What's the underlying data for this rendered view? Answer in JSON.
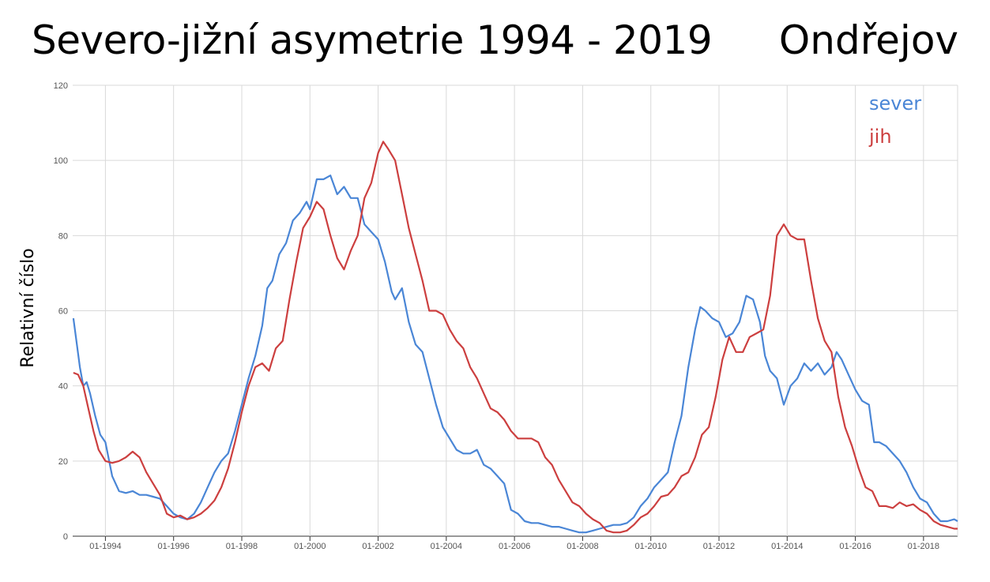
{
  "title": "Severo-jižní asymetrie 1994 - 2019",
  "station": "Ondřejov",
  "chart_data": {
    "type": "line",
    "title": "Severo-jižní asymetrie 1994 - 2019",
    "xlabel": "",
    "ylabel": "Relativní číslo",
    "ylim": [
      0,
      120
    ],
    "yticks": [
      0,
      20,
      40,
      60,
      80,
      100,
      120
    ],
    "xlim": [
      1993.04,
      2019.0
    ],
    "xticks": [
      {
        "value": 1994.0,
        "label": "01-1994"
      },
      {
        "value": 1996.0,
        "label": "01-1996"
      },
      {
        "value": 1998.0,
        "label": "01-1998"
      },
      {
        "value": 2000.0,
        "label": "01-2000"
      },
      {
        "value": 2002.0,
        "label": "01-2002"
      },
      {
        "value": 2004.0,
        "label": "01-2004"
      },
      {
        "value": 2006.0,
        "label": "01-2006"
      },
      {
        "value": 2008.0,
        "label": "01-2008"
      },
      {
        "value": 2010.0,
        "label": "01-2010"
      },
      {
        "value": 2012.0,
        "label": "01-2012"
      },
      {
        "value": 2014.0,
        "label": "01-2014"
      },
      {
        "value": 2016.0,
        "label": "01-2016"
      },
      {
        "value": 2018.0,
        "label": "01-2018"
      }
    ],
    "grid": true,
    "legend_position": "top-right",
    "series": [
      {
        "name": "sever",
        "color": "#4a86d6",
        "points": [
          [
            1993.06,
            58
          ],
          [
            1993.15,
            52
          ],
          [
            1993.25,
            45
          ],
          [
            1993.35,
            40
          ],
          [
            1993.45,
            41
          ],
          [
            1993.55,
            38
          ],
          [
            1993.7,
            32
          ],
          [
            1993.85,
            27
          ],
          [
            1994.0,
            25
          ],
          [
            1994.2,
            16
          ],
          [
            1994.4,
            12
          ],
          [
            1994.6,
            11.5
          ],
          [
            1994.8,
            12
          ],
          [
            1995.0,
            11
          ],
          [
            1995.2,
            11
          ],
          [
            1995.4,
            10.5
          ],
          [
            1995.6,
            10
          ],
          [
            1995.8,
            8
          ],
          [
            1996.0,
            6
          ],
          [
            1996.2,
            5
          ],
          [
            1996.4,
            4.5
          ],
          [
            1996.6,
            6
          ],
          [
            1996.8,
            9
          ],
          [
            1997.0,
            13
          ],
          [
            1997.2,
            17
          ],
          [
            1997.4,
            20
          ],
          [
            1997.6,
            22
          ],
          [
            1997.8,
            28
          ],
          [
            1998.0,
            35
          ],
          [
            1998.2,
            42
          ],
          [
            1998.4,
            48
          ],
          [
            1998.6,
            56
          ],
          [
            1998.75,
            66
          ],
          [
            1998.9,
            68
          ],
          [
            1999.1,
            75
          ],
          [
            1999.3,
            78
          ],
          [
            1999.5,
            84
          ],
          [
            1999.7,
            86
          ],
          [
            1999.9,
            89
          ],
          [
            2000.0,
            87
          ],
          [
            2000.2,
            95
          ],
          [
            2000.4,
            95
          ],
          [
            2000.6,
            96
          ],
          [
            2000.8,
            91
          ],
          [
            2001.0,
            93
          ],
          [
            2001.2,
            90
          ],
          [
            2001.4,
            90
          ],
          [
            2001.6,
            83
          ],
          [
            2001.8,
            81
          ],
          [
            2002.0,
            79
          ],
          [
            2002.2,
            73
          ],
          [
            2002.4,
            65
          ],
          [
            2002.5,
            63
          ],
          [
            2002.7,
            66
          ],
          [
            2002.9,
            57
          ],
          [
            2003.1,
            51
          ],
          [
            2003.3,
            49
          ],
          [
            2003.5,
            42
          ],
          [
            2003.7,
            35
          ],
          [
            2003.9,
            29
          ],
          [
            2004.1,
            26
          ],
          [
            2004.3,
            23
          ],
          [
            2004.5,
            22
          ],
          [
            2004.7,
            22
          ],
          [
            2004.9,
            23
          ],
          [
            2005.1,
            19
          ],
          [
            2005.3,
            18
          ],
          [
            2005.5,
            16
          ],
          [
            2005.7,
            14
          ],
          [
            2005.9,
            7
          ],
          [
            2006.1,
            6
          ],
          [
            2006.3,
            4
          ],
          [
            2006.5,
            3.5
          ],
          [
            2006.7,
            3.5
          ],
          [
            2006.9,
            3
          ],
          [
            2007.1,
            2.5
          ],
          [
            2007.3,
            2.5
          ],
          [
            2007.5,
            2
          ],
          [
            2007.7,
            1.5
          ],
          [
            2007.9,
            1
          ],
          [
            2008.1,
            1
          ],
          [
            2008.3,
            1.5
          ],
          [
            2008.5,
            2
          ],
          [
            2008.7,
            2.5
          ],
          [
            2008.9,
            3
          ],
          [
            2009.1,
            3
          ],
          [
            2009.3,
            3.5
          ],
          [
            2009.5,
            5
          ],
          [
            2009.7,
            8
          ],
          [
            2009.9,
            10
          ],
          [
            2010.1,
            13
          ],
          [
            2010.3,
            15
          ],
          [
            2010.5,
            17
          ],
          [
            2010.7,
            25
          ],
          [
            2010.9,
            32
          ],
          [
            2011.1,
            45
          ],
          [
            2011.3,
            55
          ],
          [
            2011.45,
            61
          ],
          [
            2011.6,
            60
          ],
          [
            2011.8,
            58
          ],
          [
            2012.0,
            57
          ],
          [
            2012.2,
            53
          ],
          [
            2012.4,
            54
          ],
          [
            2012.6,
            57
          ],
          [
            2012.8,
            64
          ],
          [
            2013.0,
            63
          ],
          [
            2013.2,
            57
          ],
          [
            2013.35,
            48
          ],
          [
            2013.5,
            44
          ],
          [
            2013.7,
            42
          ],
          [
            2013.9,
            35
          ],
          [
            2014.1,
            40
          ],
          [
            2014.3,
            42
          ],
          [
            2014.5,
            46
          ],
          [
            2014.7,
            44
          ],
          [
            2014.9,
            46
          ],
          [
            2015.1,
            43
          ],
          [
            2015.3,
            45
          ],
          [
            2015.45,
            49
          ],
          [
            2015.6,
            47
          ],
          [
            2015.8,
            43
          ],
          [
            2016.0,
            39
          ],
          [
            2016.2,
            36
          ],
          [
            2016.4,
            35
          ],
          [
            2016.55,
            25
          ],
          [
            2016.7,
            25
          ],
          [
            2016.9,
            24
          ],
          [
            2017.1,
            22
          ],
          [
            2017.3,
            20
          ],
          [
            2017.5,
            17
          ],
          [
            2017.7,
            13
          ],
          [
            2017.9,
            10
          ],
          [
            2018.1,
            9
          ],
          [
            2018.3,
            6
          ],
          [
            2018.5,
            4
          ],
          [
            2018.7,
            4
          ],
          [
            2018.9,
            4.5
          ],
          [
            2019.0,
            4
          ]
        ]
      },
      {
        "name": "jih",
        "color": "#cc3f3f",
        "points": [
          [
            1993.06,
            43.5
          ],
          [
            1993.2,
            43
          ],
          [
            1993.35,
            40
          ],
          [
            1993.5,
            34
          ],
          [
            1993.65,
            28
          ],
          [
            1993.8,
            23
          ],
          [
            1994.0,
            20
          ],
          [
            1994.2,
            19.5
          ],
          [
            1994.4,
            20
          ],
          [
            1994.6,
            21
          ],
          [
            1994.8,
            22.5
          ],
          [
            1995.0,
            21
          ],
          [
            1995.2,
            17
          ],
          [
            1995.4,
            14
          ],
          [
            1995.6,
            11
          ],
          [
            1995.8,
            6
          ],
          [
            1996.0,
            5
          ],
          [
            1996.2,
            5.5
          ],
          [
            1996.4,
            4.5
          ],
          [
            1996.6,
            5
          ],
          [
            1996.8,
            6
          ],
          [
            1997.0,
            7.5
          ],
          [
            1997.2,
            9.5
          ],
          [
            1997.4,
            13
          ],
          [
            1997.6,
            18
          ],
          [
            1997.8,
            25
          ],
          [
            1998.0,
            33
          ],
          [
            1998.2,
            40
          ],
          [
            1998.4,
            45
          ],
          [
            1998.6,
            46
          ],
          [
            1998.8,
            44
          ],
          [
            1999.0,
            50
          ],
          [
            1999.2,
            52
          ],
          [
            1999.4,
            63
          ],
          [
            1999.6,
            73
          ],
          [
            1999.8,
            82
          ],
          [
            2000.0,
            85
          ],
          [
            2000.2,
            89
          ],
          [
            2000.4,
            87
          ],
          [
            2000.6,
            80
          ],
          [
            2000.8,
            74
          ],
          [
            2001.0,
            71
          ],
          [
            2001.2,
            76
          ],
          [
            2001.4,
            80
          ],
          [
            2001.6,
            90
          ],
          [
            2001.8,
            94
          ],
          [
            2002.0,
            102
          ],
          [
            2002.15,
            105
          ],
          [
            2002.3,
            103
          ],
          [
            2002.5,
            100
          ],
          [
            2002.7,
            91
          ],
          [
            2002.9,
            82
          ],
          [
            2003.1,
            75
          ],
          [
            2003.3,
            68
          ],
          [
            2003.5,
            60
          ],
          [
            2003.7,
            60
          ],
          [
            2003.9,
            59
          ],
          [
            2004.1,
            55
          ],
          [
            2004.3,
            52
          ],
          [
            2004.5,
            50
          ],
          [
            2004.7,
            45
          ],
          [
            2004.9,
            42
          ],
          [
            2005.1,
            38
          ],
          [
            2005.3,
            34
          ],
          [
            2005.5,
            33
          ],
          [
            2005.7,
            31
          ],
          [
            2005.9,
            28
          ],
          [
            2006.1,
            26
          ],
          [
            2006.3,
            26
          ],
          [
            2006.5,
            26
          ],
          [
            2006.7,
            25
          ],
          [
            2006.9,
            21
          ],
          [
            2007.1,
            19
          ],
          [
            2007.3,
            15
          ],
          [
            2007.5,
            12
          ],
          [
            2007.7,
            9
          ],
          [
            2007.9,
            8
          ],
          [
            2008.1,
            6
          ],
          [
            2008.3,
            4.5
          ],
          [
            2008.5,
            3.5
          ],
          [
            2008.7,
            1.5
          ],
          [
            2008.9,
            1
          ],
          [
            2009.1,
            1
          ],
          [
            2009.3,
            1.5
          ],
          [
            2009.5,
            3
          ],
          [
            2009.7,
            5
          ],
          [
            2009.9,
            6
          ],
          [
            2010.1,
            8
          ],
          [
            2010.3,
            10.5
          ],
          [
            2010.5,
            11
          ],
          [
            2010.7,
            13
          ],
          [
            2010.9,
            16
          ],
          [
            2011.1,
            17
          ],
          [
            2011.3,
            21
          ],
          [
            2011.5,
            27
          ],
          [
            2011.7,
            29
          ],
          [
            2011.9,
            37
          ],
          [
            2012.1,
            47
          ],
          [
            2012.3,
            53
          ],
          [
            2012.5,
            49
          ],
          [
            2012.7,
            49
          ],
          [
            2012.9,
            53
          ],
          [
            2013.1,
            54
          ],
          [
            2013.3,
            55
          ],
          [
            2013.5,
            64
          ],
          [
            2013.7,
            80
          ],
          [
            2013.9,
            83
          ],
          [
            2014.1,
            80
          ],
          [
            2014.3,
            79
          ],
          [
            2014.5,
            79
          ],
          [
            2014.7,
            68
          ],
          [
            2014.9,
            58
          ],
          [
            2015.1,
            52
          ],
          [
            2015.3,
            49
          ],
          [
            2015.5,
            37
          ],
          [
            2015.7,
            29
          ],
          [
            2015.9,
            24
          ],
          [
            2016.1,
            18
          ],
          [
            2016.3,
            13
          ],
          [
            2016.5,
            12
          ],
          [
            2016.7,
            8
          ],
          [
            2016.9,
            8
          ],
          [
            2017.1,
            7.5
          ],
          [
            2017.3,
            9
          ],
          [
            2017.5,
            8
          ],
          [
            2017.7,
            8.5
          ],
          [
            2017.9,
            7
          ],
          [
            2018.1,
            6
          ],
          [
            2018.3,
            4
          ],
          [
            2018.5,
            3
          ],
          [
            2018.7,
            2.5
          ],
          [
            2018.9,
            2
          ],
          [
            2019.0,
            2
          ]
        ]
      }
    ]
  }
}
